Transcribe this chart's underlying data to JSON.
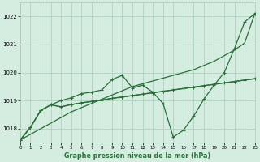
{
  "title": "Graphe pression niveau de la mer (hPa)",
  "bg_color": "#d4ede0",
  "grid_color": "#a8ccb8",
  "line_color": "#2a6e3a",
  "xlim": [
    0,
    23
  ],
  "ylim": [
    1017.5,
    1022.5
  ],
  "yticks": [
    1018,
    1019,
    1020,
    1021,
    1022
  ],
  "xticks": [
    0,
    1,
    2,
    3,
    4,
    5,
    6,
    7,
    8,
    9,
    10,
    11,
    12,
    13,
    14,
    15,
    16,
    17,
    18,
    19,
    20,
    21,
    22,
    23
  ],
  "line_diagonal": [
    1017.6,
    1017.8,
    1018.0,
    1018.2,
    1018.4,
    1018.6,
    1018.75,
    1018.9,
    1019.05,
    1019.2,
    1019.35,
    1019.5,
    1019.6,
    1019.7,
    1019.8,
    1019.9,
    1020.0,
    1020.1,
    1020.25,
    1020.4,
    1020.6,
    1020.8,
    1021.05,
    1022.1
  ],
  "line_gentle": [
    1017.6,
    1018.05,
    1018.65,
    1018.85,
    1018.78,
    1018.86,
    1018.92,
    1018.97,
    1019.02,
    1019.08,
    1019.13,
    1019.18,
    1019.23,
    1019.28,
    1019.33,
    1019.38,
    1019.43,
    1019.48,
    1019.53,
    1019.58,
    1019.63,
    1019.68,
    1019.73,
    1019.78
  ],
  "line_markers1": [
    1017.6,
    1018.05,
    1018.65,
    1018.85,
    1019.0,
    1019.1,
    1019.25,
    1019.3,
    1019.38,
    1019.75,
    1019.9,
    1019.45,
    1019.55,
    1019.3,
    1018.9,
    1017.7,
    1017.95,
    1018.45,
    1019.05,
    1019.55,
    1020.0,
    1020.85,
    1021.8,
    1022.1
  ],
  "line_markers2": [
    1017.6,
    1018.05,
    1018.65,
    1018.85,
    1018.78,
    1018.86,
    1018.92,
    1018.97,
    1019.02,
    1019.08,
    1019.13,
    1019.18,
    1019.23,
    1019.28,
    1019.33,
    1019.38,
    1019.43,
    1019.48,
    1019.53,
    1019.58,
    1019.63,
    1019.68,
    1019.73,
    1019.78
  ]
}
